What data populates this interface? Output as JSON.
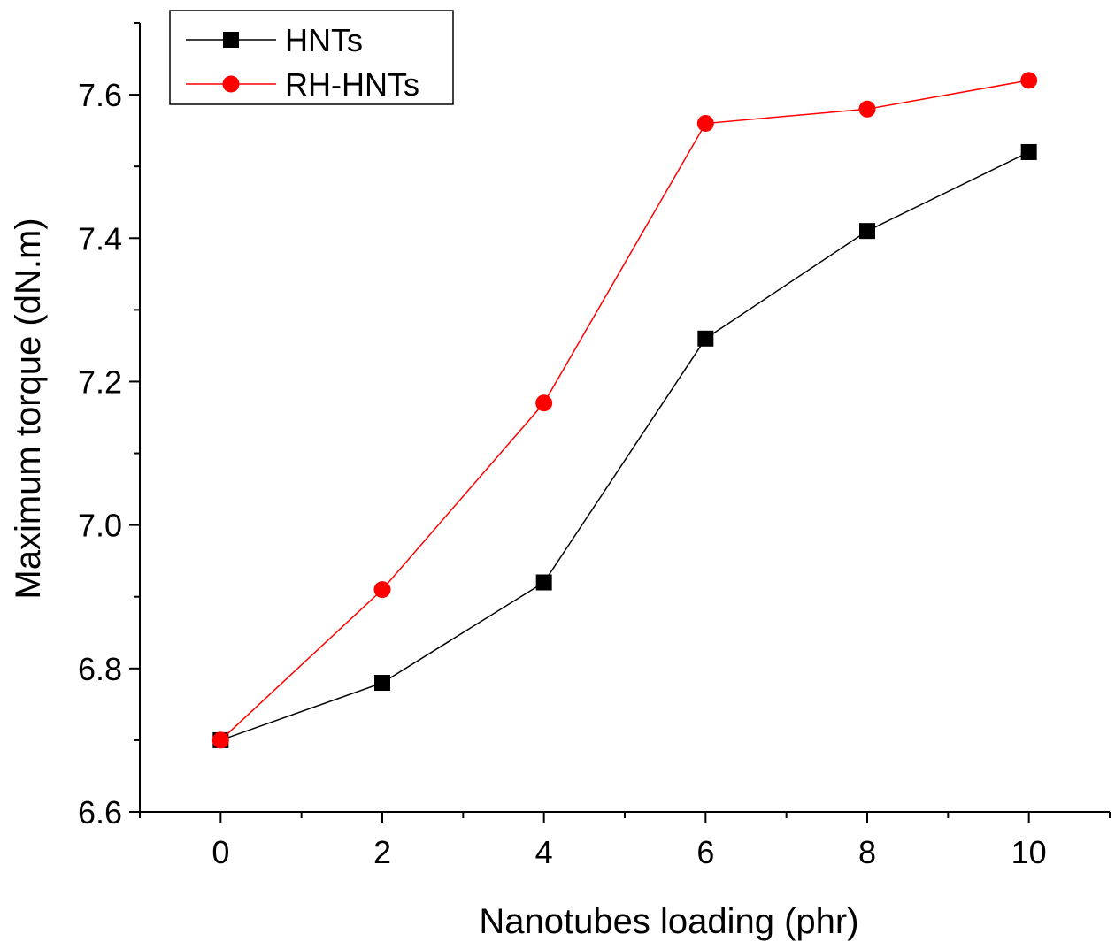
{
  "chart_data": {
    "type": "line",
    "title": "",
    "xlabel": "Nanotubes loading (phr)",
    "ylabel": "Maximum torque (dN.m)",
    "xlim": [
      -1,
      11
    ],
    "ylim": [
      6.6,
      7.7
    ],
    "xticks": [
      0,
      2,
      4,
      6,
      8,
      10
    ],
    "xtick_labels": [
      "0",
      "2",
      "4",
      "6",
      "8",
      "10"
    ],
    "yticks": [
      6.6,
      6.8,
      7.0,
      7.2,
      7.4,
      7.6
    ],
    "ytick_labels": [
      "6.6",
      "6.8",
      "7.0",
      "7.2",
      "7.4",
      "7.6"
    ],
    "x": [
      0,
      2,
      4,
      6,
      8,
      10
    ],
    "grid": false,
    "legend_position": "top-left",
    "series": [
      {
        "name": "HNTs",
        "values": [
          6.7,
          6.78,
          6.92,
          7.26,
          7.41,
          7.52
        ],
        "color": "#000000",
        "marker": "square"
      },
      {
        "name": "RH-HNTs",
        "values": [
          6.7,
          6.91,
          7.17,
          7.56,
          7.58,
          7.62
        ],
        "color": "#ff0000",
        "marker": "circle"
      }
    ]
  }
}
